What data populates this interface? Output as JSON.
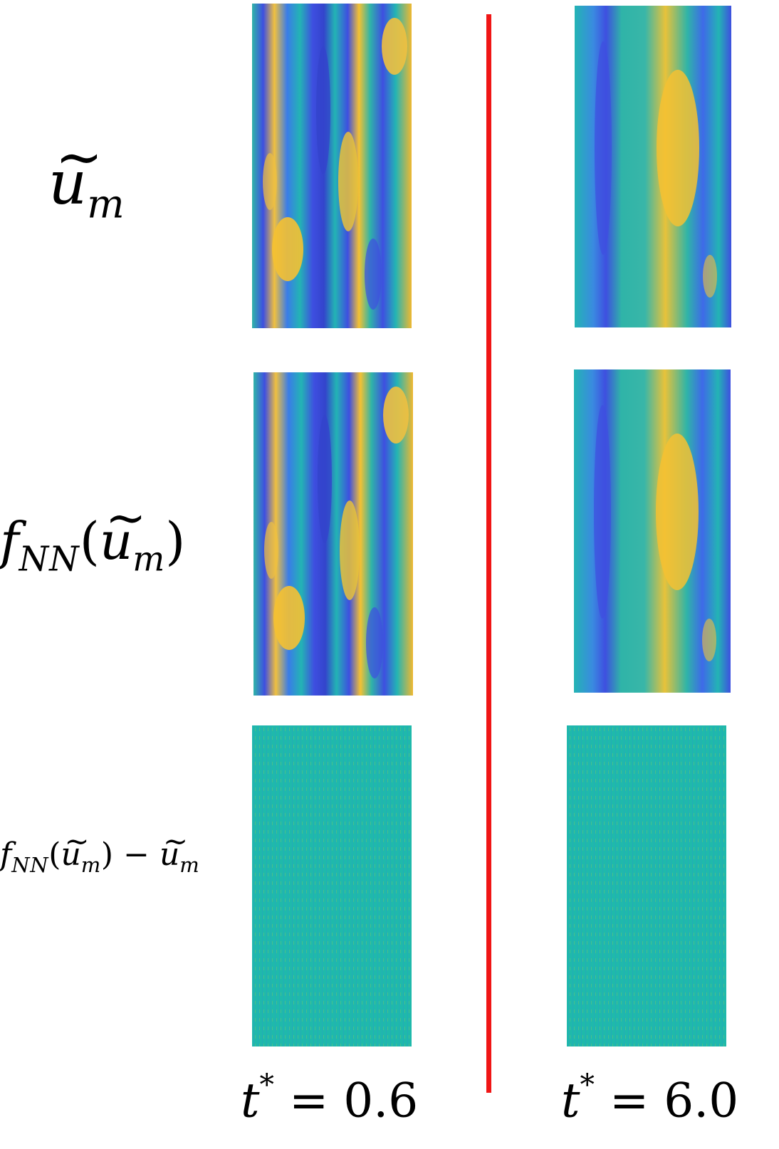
{
  "row_labels": {
    "row1": {
      "base": "u",
      "sub": "m"
    },
    "row2": {
      "f": "f",
      "f_sub": "NN",
      "open": "(",
      "base": "u",
      "sub": "m",
      "close": ")"
    },
    "row3": {
      "f": "f",
      "f_sub": "NN",
      "open": "(",
      "base": "u",
      "sub": "m",
      "close": ")",
      "minus": "−",
      "base2": "u",
      "sub2": "m"
    }
  },
  "columns": {
    "left": {
      "t": "t",
      "star": "*",
      "equals": "=",
      "value": "0.6"
    },
    "right": {
      "t": "t",
      "star": "*",
      "equals": "=",
      "value": "6.0"
    }
  },
  "colors": {
    "divider": "#f01616",
    "field_blue": "#3e4fe0",
    "field_cyan": "#23b4b4",
    "field_yellow": "#f5c132",
    "residual": "#1fb9ab"
  }
}
